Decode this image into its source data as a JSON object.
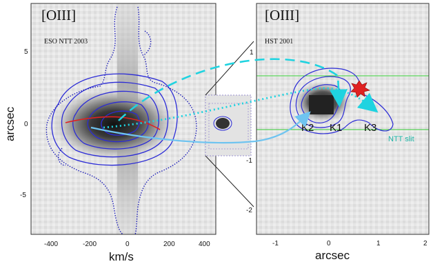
{
  "left_panel": {
    "line_label": "[OIII]",
    "instrument_label": "ESO NTT 2003",
    "y_axis_title": "arcsec",
    "x_axis_title": "km/s",
    "x_ticks": [
      "-400",
      "-200",
      "0",
      "200",
      "400"
    ],
    "y_ticks": [
      "5",
      "0",
      "-5"
    ]
  },
  "right_panel": {
    "line_label": "[OIII]",
    "instrument_label": "HST 2001",
    "x_axis_title": "arcsec",
    "x_ticks": [
      "-1",
      "0",
      "1",
      "2"
    ],
    "y_ticks": [
      "1",
      "-1",
      "-2"
    ],
    "knots": [
      "K2",
      "K1",
      "K3"
    ],
    "slit_label": "NTT slit"
  },
  "colors": {
    "contour": "#2b2bd6",
    "dotted_contour": "#1d1db8",
    "cyan": "#1fd3e0",
    "light_blue": "#6fc4f0",
    "red_curve": "#e02020",
    "slit_lines": "#33cc33",
    "star": "#e02222"
  }
}
